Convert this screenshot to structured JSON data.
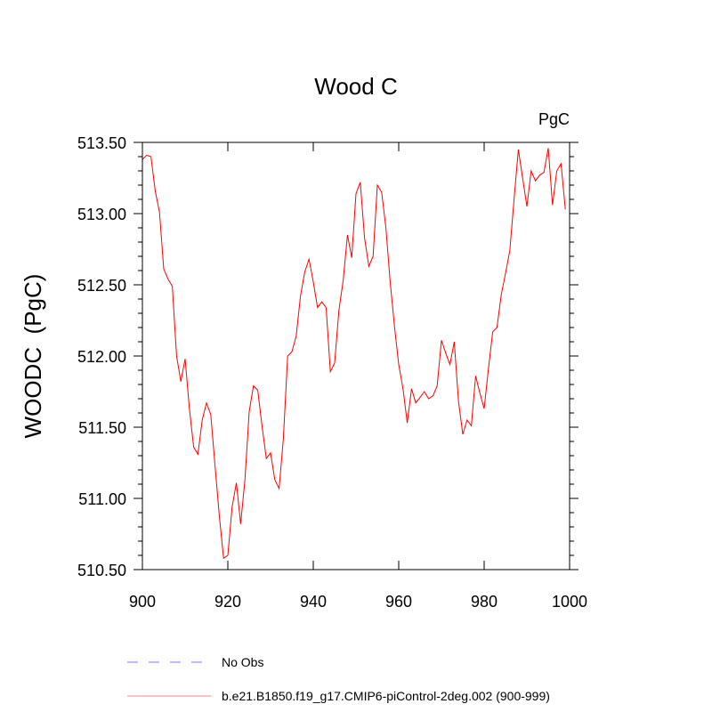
{
  "chart_data": {
    "type": "line",
    "title": "Wood C",
    "units_label": "PgC",
    "xlabel": "",
    "ylabel": "WOODC  (PgC)",
    "xlim": [
      900,
      1000
    ],
    "ylim": [
      510.5,
      513.5
    ],
    "xticks": [
      "900",
      "920",
      "940",
      "960",
      "980",
      "1000"
    ],
    "yticks": [
      "510.50",
      "511.00",
      "511.50",
      "512.00",
      "512.50",
      "513.00",
      "513.50"
    ],
    "grid": false,
    "legend_position": "bottom",
    "legend": [
      {
        "label": "No Obs",
        "color": "#7777ff",
        "style": "dashed"
      },
      {
        "label": "b.e21.B1850.f19_g17.CMIP6-piControl-2deg.002 (900-999)",
        "color": "#ff0000",
        "style": "solid"
      }
    ],
    "series": [
      {
        "name": "b.e21.B1850.f19_g17.CMIP6-piControl-2deg.002 (900-999)",
        "color": "#ff0000",
        "x_start": 900,
        "values": [
          513.38,
          513.41,
          513.4,
          513.16,
          513.01,
          512.61,
          512.54,
          512.49,
          512.0,
          511.82,
          511.98,
          511.63,
          511.36,
          511.31,
          511.55,
          511.67,
          511.59,
          511.23,
          510.88,
          510.58,
          510.6,
          510.94,
          511.11,
          510.82,
          511.13,
          511.61,
          511.79,
          511.76,
          511.51,
          511.28,
          511.32,
          511.13,
          511.07,
          511.42,
          512.0,
          512.03,
          512.14,
          512.42,
          512.59,
          512.68,
          512.52,
          512.34,
          512.38,
          512.34,
          511.89,
          511.95,
          512.32,
          512.53,
          512.85,
          512.69,
          513.14,
          513.22,
          512.83,
          512.63,
          512.7,
          513.2,
          513.15,
          512.9,
          512.52,
          512.21,
          511.94,
          511.77,
          511.53,
          511.77,
          511.67,
          511.71,
          511.75,
          511.7,
          511.72,
          511.79,
          512.11,
          512.02,
          511.94,
          512.1,
          511.68,
          511.45,
          511.55,
          511.51,
          511.86,
          511.74,
          511.63,
          511.91,
          512.17,
          512.2,
          512.43,
          512.58,
          512.74,
          513.1,
          513.45,
          513.25,
          513.05,
          513.3,
          513.23,
          513.27,
          513.29,
          513.46,
          513.06,
          513.3,
          513.35,
          513.03
        ]
      }
    ]
  }
}
